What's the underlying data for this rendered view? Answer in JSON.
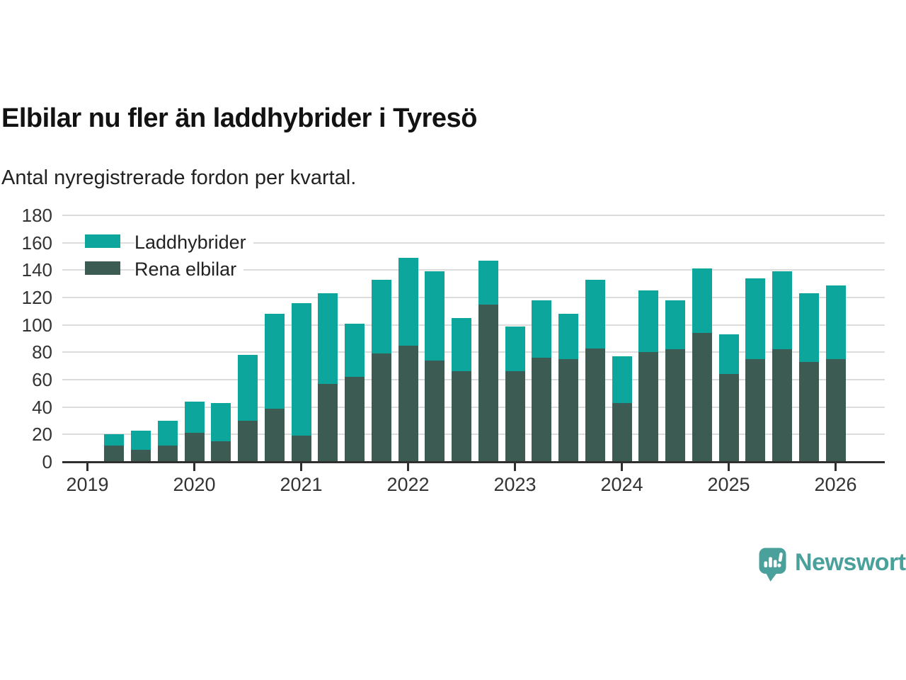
{
  "header": {
    "title": "Elbilar nu fler än laddhybrider i Tyresö",
    "subtitle": "Antal nyregistrerade fordon per kvartal."
  },
  "chart_data": {
    "type": "bar",
    "stacked": true,
    "title": "Elbilar nu fler än laddhybrider i Tyresö",
    "subtitle": "Antal nyregistrerade fordon per kvartal.",
    "xlabel": "",
    "ylabel": "",
    "ylim": [
      0,
      180
    ],
    "grid": true,
    "legend_position": "top-left",
    "categories": [
      "2019 Q2",
      "2019 Q3",
      "2019 Q4",
      "2020 Q1",
      "2020 Q2",
      "2020 Q3",
      "2020 Q4",
      "2021 Q1",
      "2021 Q2",
      "2021 Q3",
      "2021 Q4",
      "2022 Q1",
      "2022 Q2",
      "2022 Q3",
      "2022 Q4",
      "2023 Q1",
      "2023 Q2",
      "2023 Q3",
      "2023 Q4",
      "2024 Q1",
      "2024 Q2",
      "2024 Q3",
      "2024 Q4",
      "2025 Q1",
      "2025 Q2",
      "2025 Q3",
      "2025 Q4",
      "2026 Q1"
    ],
    "series": [
      {
        "name": "Laddhybrider",
        "color": "#0ca69c",
        "stack_position": "top",
        "values": [
          8,
          14,
          18,
          23,
          28,
          48,
          69,
          97,
          66,
          39,
          54,
          64,
          65,
          39,
          32,
          33,
          42,
          33,
          50,
          34,
          45,
          36,
          47,
          29,
          59,
          57,
          50,
          54
        ]
      },
      {
        "name": "Rena elbilar",
        "color": "#3b5b53",
        "stack_position": "bottom",
        "values": [
          12,
          9,
          12,
          21,
          15,
          30,
          39,
          19,
          57,
          62,
          79,
          85,
          74,
          66,
          115,
          66,
          76,
          75,
          83,
          43,
          80,
          82,
          94,
          64,
          75,
          82,
          73,
          75
        ]
      }
    ],
    "y_ticks": [
      0,
      20,
      40,
      60,
      80,
      100,
      120,
      140,
      160,
      180
    ],
    "x_tick_labels": [
      "2019",
      "2020",
      "2021",
      "2022",
      "2023",
      "2024",
      "2025",
      "2026"
    ],
    "grid_color": "#dcdcdc",
    "axis_color": "#2f2f2f",
    "tick_label_color": "#333333"
  },
  "footer": {
    "brand": "Newsworthy",
    "brand_color": "#4aa19b",
    "logo_icon": "newsworthy-speech-bubble-chart-icon"
  }
}
